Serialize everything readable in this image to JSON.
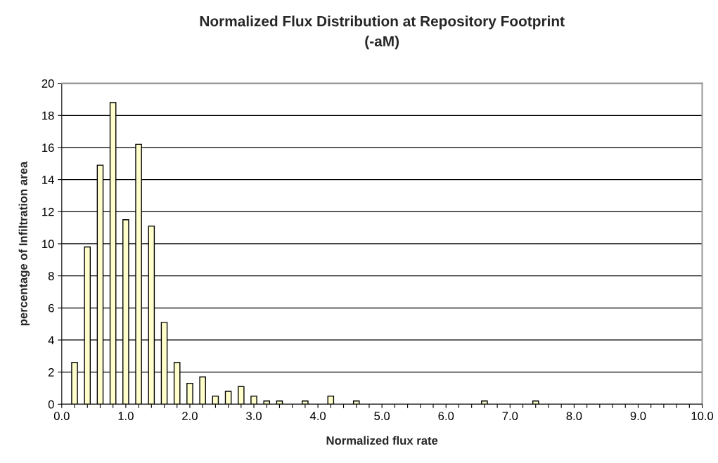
{
  "chart_data": {
    "type": "bar",
    "title": "Normalized Flux Distribution at Repository Footprint\n(-aM)",
    "xlabel": "Normalized flux rate",
    "ylabel": "percentage of Infiltration area",
    "x": [
      0.2,
      0.4,
      0.6,
      0.8,
      1.0,
      1.2,
      1.4,
      1.6,
      1.8,
      2.0,
      2.2,
      2.4,
      2.6,
      2.8,
      3.0,
      3.2,
      3.4,
      3.8,
      4.2,
      4.6,
      6.6,
      7.4
    ],
    "values": [
      2.6,
      9.8,
      14.9,
      18.8,
      11.5,
      16.2,
      11.1,
      5.1,
      2.6,
      1.3,
      1.7,
      0.5,
      0.8,
      1.1,
      0.5,
      0.2,
      0.2,
      0.2,
      0.5,
      0.2,
      0.2,
      0.2
    ],
    "color": "#ffffcc",
    "xlim": [
      0,
      10
    ],
    "xticks": [
      {
        "value": 0,
        "label": "0.0"
      },
      {
        "value": 0.2,
        "label": null
      },
      {
        "value": 0.4,
        "label": null
      },
      {
        "value": 0.6,
        "label": null
      },
      {
        "value": 0.8,
        "label": null
      },
      {
        "value": 1,
        "label": "1.0"
      },
      {
        "value": 1.2,
        "label": null
      },
      {
        "value": 1.4,
        "label": null
      },
      {
        "value": 1.6,
        "label": null
      },
      {
        "value": 1.8,
        "label": null
      },
      {
        "value": 2,
        "label": "2.0"
      },
      {
        "value": 2.2,
        "label": null
      },
      {
        "value": 2.4,
        "label": null
      },
      {
        "value": 2.6,
        "label": null
      },
      {
        "value": 2.8,
        "label": null
      },
      {
        "value": 3,
        "label": "3.0"
      },
      {
        "value": 3.2,
        "label": null
      },
      {
        "value": 3.4,
        "label": null
      },
      {
        "value": 3.6,
        "label": null
      },
      {
        "value": 3.8,
        "label": null
      },
      {
        "value": 4,
        "label": "4.0"
      },
      {
        "value": 4.2,
        "label": null
      },
      {
        "value": 4.4,
        "label": null
      },
      {
        "value": 4.6,
        "label": null
      },
      {
        "value": 4.8,
        "label": null
      },
      {
        "value": 5,
        "label": "5.0"
      },
      {
        "value": 5.2,
        "label": null
      },
      {
        "value": 5.4,
        "label": null
      },
      {
        "value": 5.6,
        "label": null
      },
      {
        "value": 5.8,
        "label": null
      },
      {
        "value": 6,
        "label": "6.0"
      },
      {
        "value": 6.2,
        "label": null
      },
      {
        "value": 6.4,
        "label": null
      },
      {
        "value": 6.6,
        "label": null
      },
      {
        "value": 6.8,
        "label": null
      },
      {
        "value": 7,
        "label": "7.0"
      },
      {
        "value": 7.2,
        "label": null
      },
      {
        "value": 7.4,
        "label": null
      },
      {
        "value": 7.6,
        "label": null
      },
      {
        "value": 7.8,
        "label": null
      },
      {
        "value": 8,
        "label": "8.0"
      },
      {
        "value": 8.2,
        "label": null
      },
      {
        "value": 8.4,
        "label": null
      },
      {
        "value": 8.6,
        "label": null
      },
      {
        "value": 8.8,
        "label": null
      },
      {
        "value": 9,
        "label": "9.0"
      },
      {
        "value": 9.2,
        "label": null
      },
      {
        "value": 9.4,
        "label": null
      },
      {
        "value": 9.6,
        "label": null
      },
      {
        "value": 9.8,
        "label": null
      },
      {
        "value": 10,
        "label": "10.0"
      }
    ],
    "ylim": [
      0,
      20
    ],
    "yticks": [
      0,
      2,
      4,
      6,
      8,
      10,
      12,
      14,
      16,
      18,
      20
    ],
    "grid": "y"
  }
}
